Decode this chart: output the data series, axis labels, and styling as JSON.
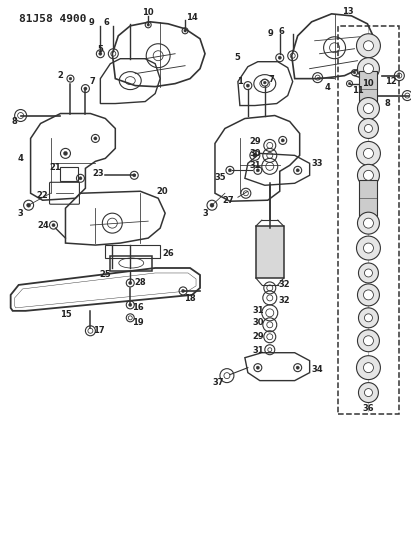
{
  "title": "81J58 4900",
  "bg_color": "#ffffff",
  "line_color": "#333333",
  "fig_width": 4.12,
  "fig_height": 5.33,
  "dpi": 100
}
